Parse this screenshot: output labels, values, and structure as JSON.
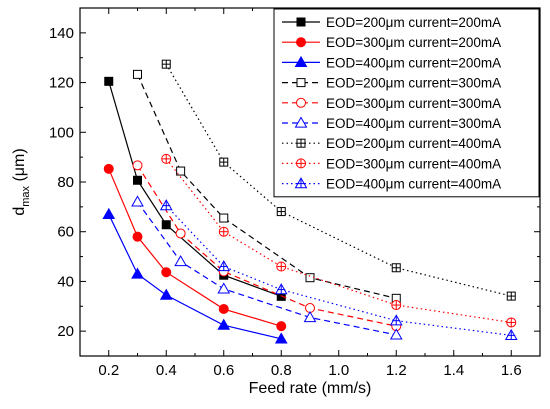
{
  "chart_data": {
    "type": "line",
    "title": "",
    "xlabel": "Feed rate (mm/s)",
    "ylabel": {
      "main": "d",
      "sub": "max",
      "unit": " (μm)"
    },
    "xlim": [
      0.1,
      1.7
    ],
    "ylim": [
      10,
      150
    ],
    "xticks": [
      0.2,
      0.4,
      0.6,
      0.8,
      1.0,
      1.2,
      1.4,
      1.6
    ],
    "xtick_labels": [
      "0.2",
      "0.4",
      "0.6",
      "0.8",
      "1.0",
      "1.2",
      "1.4",
      "1.6"
    ],
    "yticks": [
      20,
      40,
      60,
      80,
      100,
      120,
      140
    ],
    "ytick_labels": [
      "20",
      "40",
      "60",
      "80",
      "100",
      "120",
      "140"
    ],
    "grid": false,
    "legend_position": "top-right",
    "series": [
      {
        "name": "EOD=200μm current=200mA",
        "color": "#000000",
        "dash": "solid",
        "marker": "square",
        "filled": true,
        "x": [
          0.2,
          0.3,
          0.4,
          0.6,
          0.8
        ],
        "y": [
          120.5,
          80.7,
          62.8,
          42.5,
          34.0
        ]
      },
      {
        "name": "EOD=300μm current=200mA",
        "color": "#ff0000",
        "dash": "solid",
        "marker": "circle",
        "filled": true,
        "x": [
          0.2,
          0.3,
          0.4,
          0.6,
          0.8
        ],
        "y": [
          85.3,
          58.0,
          43.7,
          28.9,
          22.0
        ]
      },
      {
        "name": "EOD=400μm current=200mA",
        "color": "#0000ff",
        "dash": "solid",
        "marker": "triangle",
        "filled": true,
        "x": [
          0.2,
          0.3,
          0.4,
          0.6,
          0.8
        ],
        "y": [
          67.0,
          43.0,
          34.5,
          22.4,
          16.9
        ]
      },
      {
        "name": "EOD=200μm current=300mA",
        "color": "#000000",
        "dash": "dash",
        "marker": "square",
        "filled": false,
        "x": [
          0.3,
          0.45,
          0.6,
          0.9,
          1.2
        ],
        "y": [
          123.3,
          84.4,
          65.5,
          41.5,
          33.2
        ]
      },
      {
        "name": "EOD=300μm current=300mA",
        "color": "#ff0000",
        "dash": "dash",
        "marker": "circle",
        "filled": false,
        "x": [
          0.3,
          0.45,
          0.6,
          0.9,
          1.2
        ],
        "y": [
          86.7,
          59.3,
          44.0,
          29.3,
          22.0
        ]
      },
      {
        "name": "EOD=400μm current=300mA",
        "color": "#0000ff",
        "dash": "dash",
        "marker": "triangle",
        "filled": false,
        "x": [
          0.3,
          0.45,
          0.6,
          0.9,
          1.2
        ],
        "y": [
          72.0,
          48.0,
          37.0,
          25.5,
          18.5
        ]
      },
      {
        "name": "EOD=200μm current=400mA",
        "color": "#000000",
        "dash": "dot",
        "marker": "crosssquare",
        "filled": false,
        "x": [
          0.4,
          0.6,
          0.8,
          1.2,
          1.6
        ],
        "y": [
          127.4,
          88.0,
          68.1,
          45.5,
          34.1
        ]
      },
      {
        "name": "EOD=300μm current=400mA",
        "color": "#ff0000",
        "dash": "dot",
        "marker": "crosscircle",
        "filled": false,
        "x": [
          0.4,
          0.6,
          0.8,
          1.2,
          1.6
        ],
        "y": [
          89.3,
          60.0,
          46.0,
          30.5,
          23.5
        ]
      },
      {
        "name": "EOD=400μm current=400mA",
        "color": "#0000ff",
        "dash": "dot",
        "marker": "crosstriangle",
        "filled": false,
        "x": [
          0.4,
          0.6,
          0.8,
          1.2,
          1.6
        ],
        "y": [
          70.5,
          46.0,
          36.7,
          24.2,
          18.3
        ]
      }
    ]
  }
}
